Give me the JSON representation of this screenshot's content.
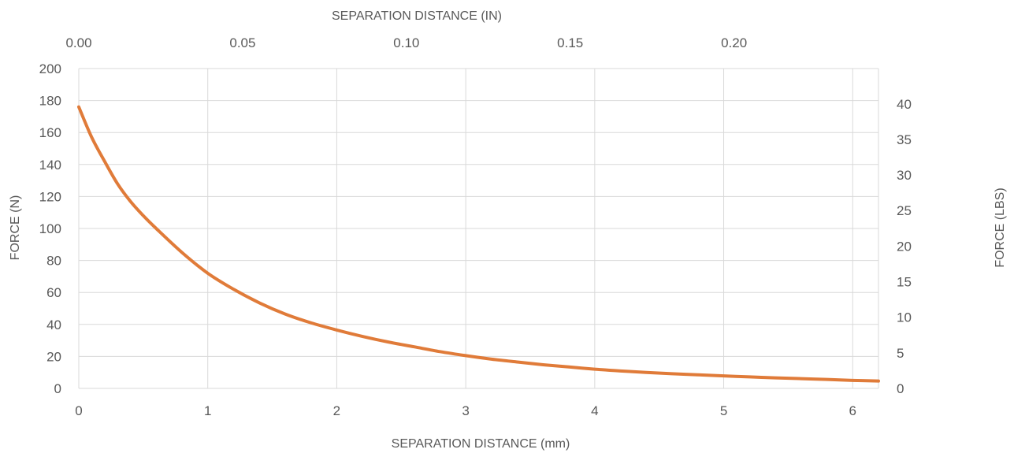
{
  "chart_data": {
    "type": "line",
    "title": "",
    "xlabel": "SEPARATION DISTANCE (mm)",
    "x2label": "SEPARATION DISTANCE (IN)",
    "ylabel": "FORCE (N)",
    "y2label": "FORCE (LBS)",
    "xlim": [
      0,
      6.2
    ],
    "ylim": [
      0,
      200
    ],
    "x2lim": [
      0,
      0.2441
    ],
    "y2lim": [
      0,
      44.96
    ],
    "grid": true,
    "legend": "none",
    "x_ticks": [
      0,
      1,
      2,
      3,
      4,
      5,
      6
    ],
    "x_tick_labels": [
      "0",
      "1",
      "2",
      "3",
      "4",
      "5",
      "6"
    ],
    "y_ticks": [
      0,
      20,
      40,
      60,
      80,
      100,
      120,
      140,
      160,
      180,
      200
    ],
    "y_tick_labels": [
      "0",
      "20",
      "40",
      "60",
      "80",
      "100",
      "120",
      "140",
      "160",
      "180",
      "200"
    ],
    "x2_ticks": [
      0,
      0.05,
      0.1,
      0.15,
      0.2
    ],
    "x2_tick_labels": [
      "0.00",
      "0.05",
      "0.10",
      "0.15",
      "0.20"
    ],
    "y2_ticks": [
      0,
      5,
      10,
      15,
      20,
      25,
      30,
      35,
      40
    ],
    "y2_tick_labels": [
      "0",
      "5",
      "10",
      "15",
      "20",
      "25",
      "30",
      "35",
      "40"
    ],
    "series": [
      {
        "color": "#E07B39",
        "x": [
          0,
          0.1,
          0.2,
          0.3,
          0.4,
          0.5,
          0.6,
          0.8,
          1.0,
          1.2,
          1.4,
          1.6,
          1.8,
          2.0,
          2.2,
          2.4,
          2.6,
          2.8,
          3.0,
          3.2,
          3.4,
          3.6,
          3.8,
          4.0,
          4.2,
          4.4,
          4.6,
          4.8,
          5.0,
          5.2,
          5.4,
          5.6,
          5.8,
          6.0,
          6.2
        ],
        "y": [
          176,
          157,
          142,
          128,
          117,
          108,
          100,
          85,
          72,
          62,
          53.5,
          46.5,
          41,
          36.5,
          32.5,
          29,
          26,
          23,
          20.5,
          18.3,
          16.5,
          14.8,
          13.4,
          12,
          10.9,
          10,
          9.2,
          8.5,
          7.8,
          7.2,
          6.6,
          6.1,
          5.6,
          5.0,
          4.6
        ]
      }
    ]
  }
}
